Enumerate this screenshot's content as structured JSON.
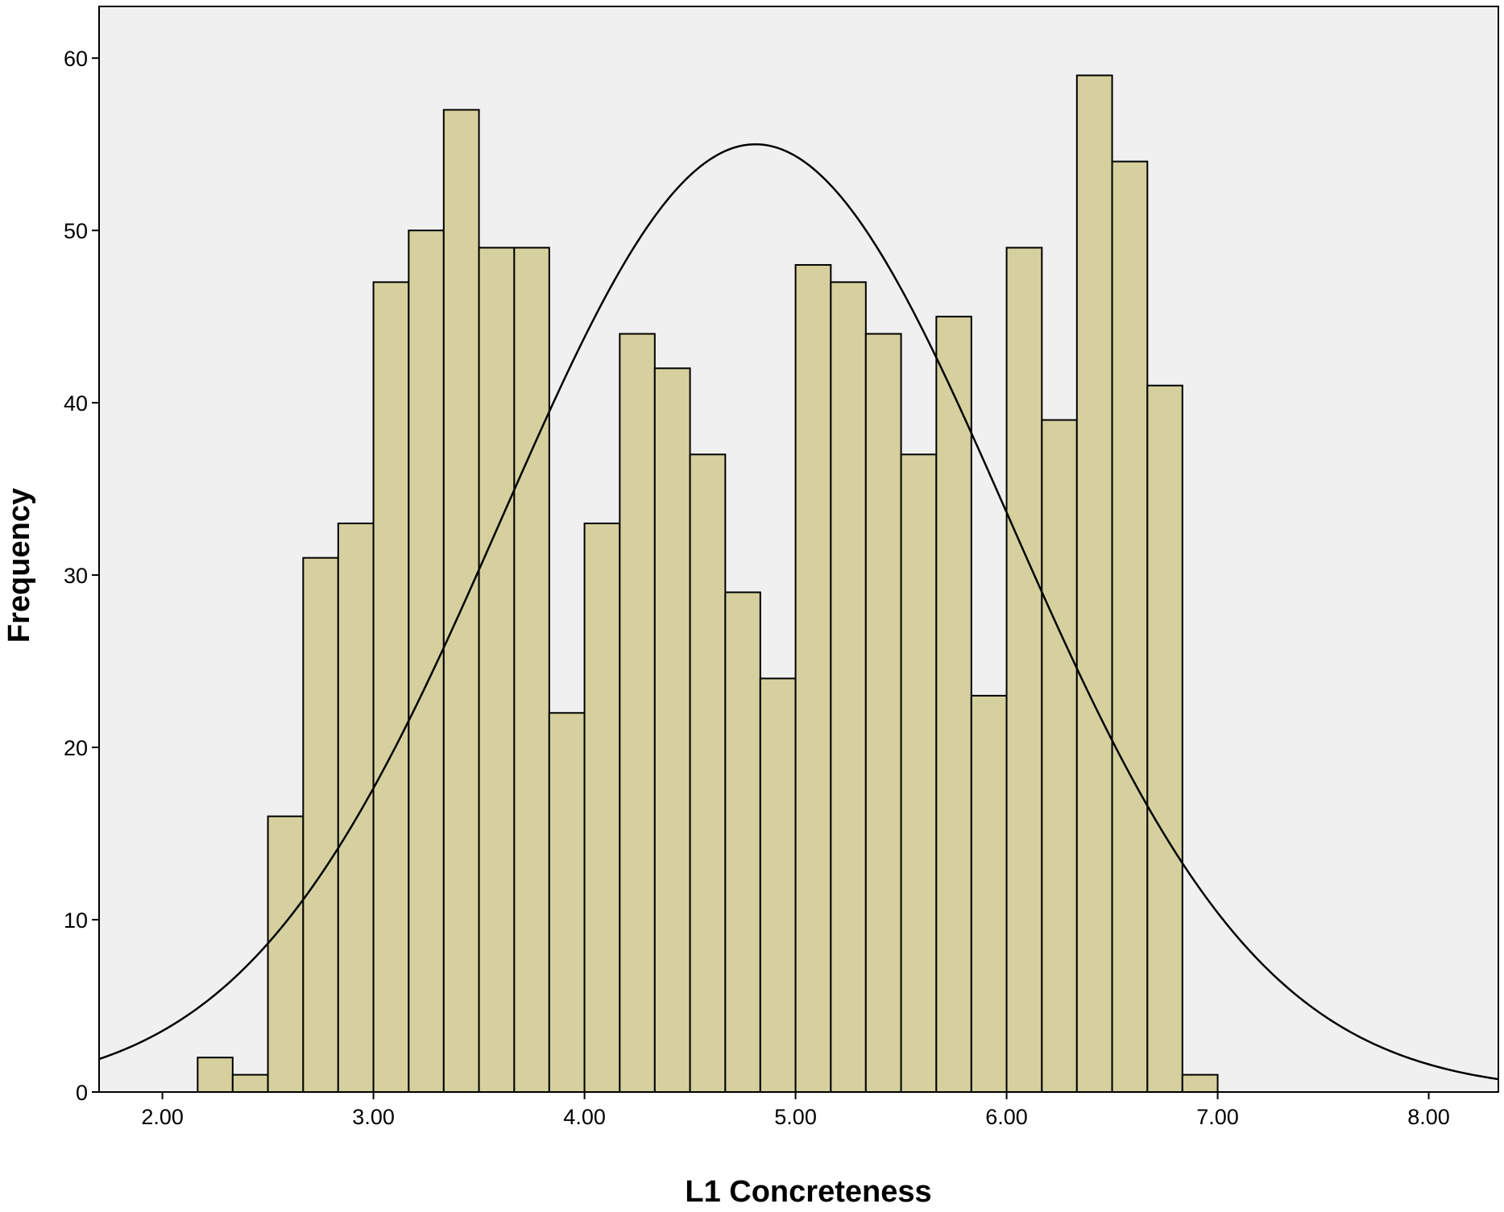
{
  "chart_data": {
    "type": "bar",
    "subtype": "histogram_with_normal_curve",
    "title": "",
    "xlabel": "L1 Concreteness",
    "ylabel": "Frequency",
    "xlim": [
      1.7,
      8.33
    ],
    "ylim": [
      0,
      63
    ],
    "x_ticks": [
      2.0,
      3.0,
      4.0,
      5.0,
      6.0,
      7.0,
      8.0
    ],
    "x_tick_labels": [
      "2.00",
      "3.00",
      "4.00",
      "5.00",
      "6.00",
      "7.00",
      "8.00"
    ],
    "y_ticks": [
      0,
      10,
      20,
      30,
      40,
      50,
      60
    ],
    "y_tick_labels": [
      "0",
      "10",
      "20",
      "30",
      "40",
      "50",
      "60"
    ],
    "bin_edges": [
      2.167,
      2.333,
      2.5,
      2.667,
      2.833,
      3.0,
      3.167,
      3.333,
      3.5,
      3.667,
      3.833,
      4.0,
      4.167,
      4.333,
      4.5,
      4.667,
      4.833,
      5.0,
      5.167,
      5.333,
      5.5,
      5.667,
      5.833,
      6.0,
      6.167,
      6.333,
      6.5,
      6.667,
      6.833,
      7.0
    ],
    "values": [
      2,
      1,
      16,
      31,
      33,
      47,
      50,
      57,
      49,
      49,
      22,
      33,
      44,
      42,
      37,
      29,
      24,
      48,
      47,
      44,
      37,
      45,
      23,
      49,
      39,
      59,
      54,
      41,
      1
    ],
    "normal_curve": {
      "mean": 4.81,
      "std_dev": 1.2,
      "peak": 55
    },
    "grid": false,
    "legend": "none",
    "colors": {
      "bar_fill": "#d5d09e",
      "bar_stroke": "#000000",
      "plot_background": "#f0f0f0",
      "curve": "#000000"
    }
  }
}
